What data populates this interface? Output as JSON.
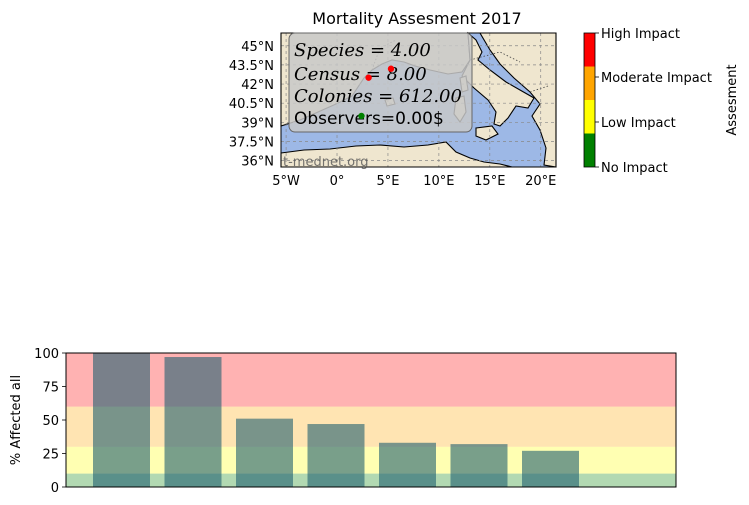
{
  "chart_data": [
    {
      "type": "scatter",
      "title": "Mortality Assesment 2017",
      "x_ticks": [
        "5°W",
        "0°",
        "5°E",
        "10°E",
        "15°E",
        "20°E"
      ],
      "x_tick_values": [
        -5,
        0,
        5,
        10,
        15,
        20
      ],
      "y_ticks": [
        "45°N",
        "43.5°N",
        "42°N",
        "40.5°N",
        "39°N",
        "37.5°N",
        "36°N"
      ],
      "y_tick_values": [
        45,
        43.5,
        42,
        40.5,
        39,
        37.5,
        36
      ],
      "xlim": [
        -5.5,
        21.5
      ],
      "ylim": [
        35.5,
        46.0
      ],
      "grid": true,
      "watermark": "t-mednet.org",
      "stats": {
        "species": "Species = 4.00",
        "census": "Census = 8.00",
        "colonies": "Colonies = 612.00",
        "observers": "Observers=0.00$"
      },
      "points": [
        {
          "lon": 5.3,
          "lat": 43.2,
          "impact": "High Impact",
          "color": "#ff0000"
        },
        {
          "lon": 3.1,
          "lat": 42.5,
          "impact": "High Impact",
          "color": "#ff0000"
        },
        {
          "lon": 2.4,
          "lat": 39.5,
          "impact": "No Impact",
          "color": "#008000"
        }
      ],
      "colorbar": {
        "label": "Assesment",
        "levels": [
          {
            "name": "No Impact",
            "color": "#008000"
          },
          {
            "name": "Low Impact",
            "color": "#ffff00"
          },
          {
            "name": "Moderate Impact",
            "color": "#ffa500"
          },
          {
            "name": "High Impact",
            "color": "#ff0000"
          }
        ]
      }
    },
    {
      "type": "bar",
      "ylabel": "% Affected all",
      "ylim": [
        0,
        100
      ],
      "y_ticks": [
        "0",
        "25",
        "50",
        "75",
        "100"
      ],
      "y_tick_values": [
        0,
        25,
        50,
        75,
        100
      ],
      "values": [
        100,
        97,
        51,
        47,
        33,
        32,
        27
      ],
      "bar_color": "#1f5f6f",
      "bands": [
        {
          "from": 0,
          "to": 10,
          "color": "#008000"
        },
        {
          "from": 10,
          "to": 30,
          "color": "#ffff00"
        },
        {
          "from": 30,
          "to": 60,
          "color": "#ffa500"
        },
        {
          "from": 60,
          "to": 100,
          "color": "#ff0000"
        }
      ]
    }
  ]
}
